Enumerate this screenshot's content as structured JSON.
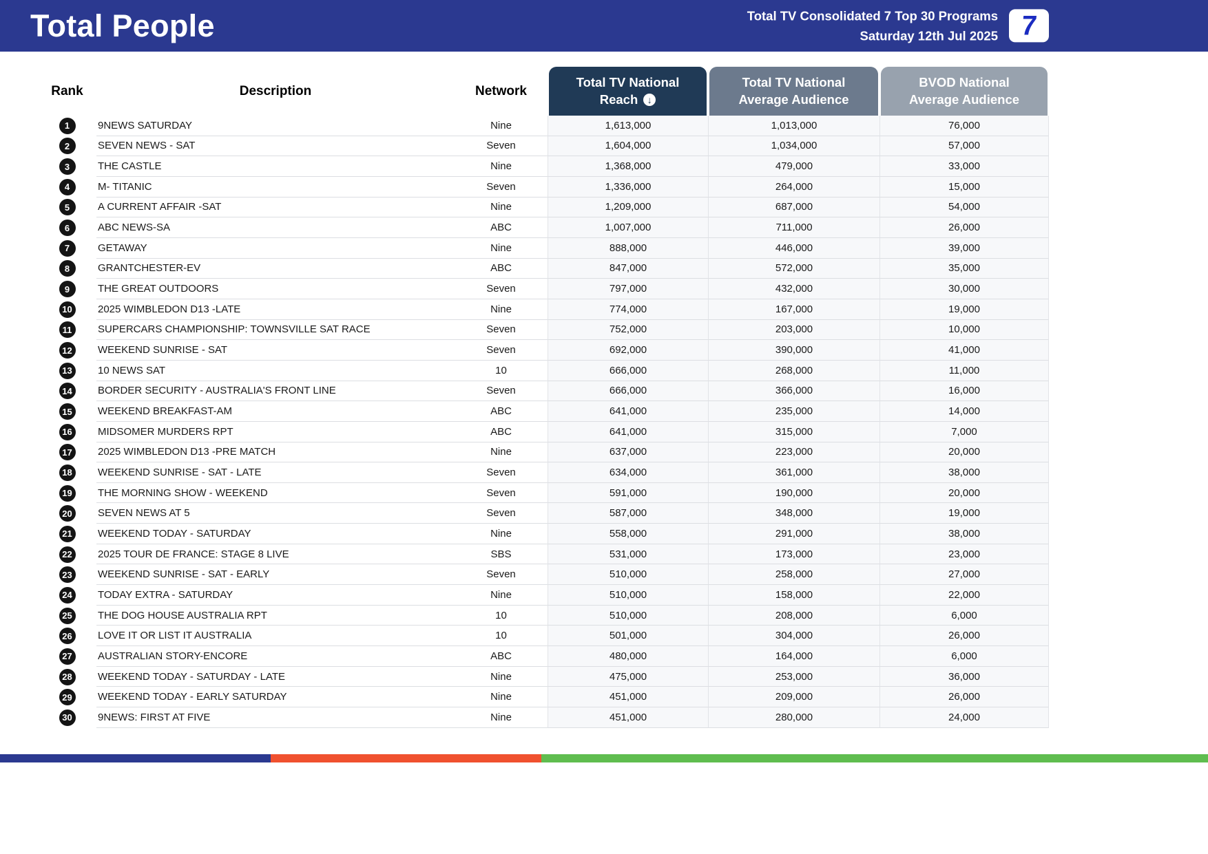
{
  "header": {
    "title": "Total People",
    "report_line1": "Total TV Consolidated 7 Top 30 Programs",
    "report_line2": "Saturday 12th Jul 2025",
    "logo_glyph": "7"
  },
  "table": {
    "columns": {
      "rank": "Rank",
      "description": "Description",
      "network": "Network",
      "reach_line1": "Total TV National",
      "reach_line2": "Reach",
      "avg_line1": "Total TV National",
      "avg_line2": "Average Audience",
      "bvod_line1": "BVOD National",
      "bvod_line2": "Average Audience"
    },
    "sort_icon": "↓",
    "rows": [
      {
        "rank": 1,
        "description": "9NEWS SATURDAY",
        "network": "Nine",
        "reach": "1,613,000",
        "avg": "1,013,000",
        "bvod": "76,000"
      },
      {
        "rank": 2,
        "description": "SEVEN NEWS - SAT",
        "network": "Seven",
        "reach": "1,604,000",
        "avg": "1,034,000",
        "bvod": "57,000"
      },
      {
        "rank": 3,
        "description": "THE CASTLE",
        "network": "Nine",
        "reach": "1,368,000",
        "avg": "479,000",
        "bvod": "33,000"
      },
      {
        "rank": 4,
        "description": "M- TITANIC",
        "network": "Seven",
        "reach": "1,336,000",
        "avg": "264,000",
        "bvod": "15,000"
      },
      {
        "rank": 5,
        "description": "A CURRENT AFFAIR -SAT",
        "network": "Nine",
        "reach": "1,209,000",
        "avg": "687,000",
        "bvod": "54,000"
      },
      {
        "rank": 6,
        "description": "ABC NEWS-SA",
        "network": "ABC",
        "reach": "1,007,000",
        "avg": "711,000",
        "bvod": "26,000"
      },
      {
        "rank": 7,
        "description": "GETAWAY",
        "network": "Nine",
        "reach": "888,000",
        "avg": "446,000",
        "bvod": "39,000"
      },
      {
        "rank": 8,
        "description": "GRANTCHESTER-EV",
        "network": "ABC",
        "reach": "847,000",
        "avg": "572,000",
        "bvod": "35,000"
      },
      {
        "rank": 9,
        "description": "THE GREAT OUTDOORS",
        "network": "Seven",
        "reach": "797,000",
        "avg": "432,000",
        "bvod": "30,000"
      },
      {
        "rank": 10,
        "description": "2025 WIMBLEDON D13 -LATE",
        "network": "Nine",
        "reach": "774,000",
        "avg": "167,000",
        "bvod": "19,000"
      },
      {
        "rank": 11,
        "description": "SUPERCARS CHAMPIONSHIP: TOWNSVILLE SAT RACE",
        "network": "Seven",
        "reach": "752,000",
        "avg": "203,000",
        "bvod": "10,000"
      },
      {
        "rank": 12,
        "description": "WEEKEND SUNRISE - SAT",
        "network": "Seven",
        "reach": "692,000",
        "avg": "390,000",
        "bvod": "41,000"
      },
      {
        "rank": 13,
        "description": "10 NEWS SAT",
        "network": "10",
        "reach": "666,000",
        "avg": "268,000",
        "bvod": "11,000"
      },
      {
        "rank": 14,
        "description": "BORDER SECURITY - AUSTRALIA'S FRONT LINE",
        "network": "Seven",
        "reach": "666,000",
        "avg": "366,000",
        "bvod": "16,000"
      },
      {
        "rank": 15,
        "description": "WEEKEND BREAKFAST-AM",
        "network": "ABC",
        "reach": "641,000",
        "avg": "235,000",
        "bvod": "14,000"
      },
      {
        "rank": 16,
        "description": "MIDSOMER MURDERS RPT",
        "network": "ABC",
        "reach": "641,000",
        "avg": "315,000",
        "bvod": "7,000"
      },
      {
        "rank": 17,
        "description": "2025 WIMBLEDON D13 -PRE MATCH",
        "network": "Nine",
        "reach": "637,000",
        "avg": "223,000",
        "bvod": "20,000"
      },
      {
        "rank": 18,
        "description": "WEEKEND SUNRISE - SAT - LATE",
        "network": "Seven",
        "reach": "634,000",
        "avg": "361,000",
        "bvod": "38,000"
      },
      {
        "rank": 19,
        "description": "THE MORNING SHOW - WEEKEND",
        "network": "Seven",
        "reach": "591,000",
        "avg": "190,000",
        "bvod": "20,000"
      },
      {
        "rank": 20,
        "description": "SEVEN NEWS AT 5",
        "network": "Seven",
        "reach": "587,000",
        "avg": "348,000",
        "bvod": "19,000"
      },
      {
        "rank": 21,
        "description": "WEEKEND TODAY - SATURDAY",
        "network": "Nine",
        "reach": "558,000",
        "avg": "291,000",
        "bvod": "38,000"
      },
      {
        "rank": 22,
        "description": "2025 TOUR DE FRANCE: STAGE 8 LIVE",
        "network": "SBS",
        "reach": "531,000",
        "avg": "173,000",
        "bvod": "23,000"
      },
      {
        "rank": 23,
        "description": "WEEKEND SUNRISE - SAT - EARLY",
        "network": "Seven",
        "reach": "510,000",
        "avg": "258,000",
        "bvod": "27,000"
      },
      {
        "rank": 24,
        "description": "TODAY EXTRA - SATURDAY",
        "network": "Nine",
        "reach": "510,000",
        "avg": "158,000",
        "bvod": "22,000"
      },
      {
        "rank": 25,
        "description": "THE DOG HOUSE AUSTRALIA RPT",
        "network": "10",
        "reach": "510,000",
        "avg": "208,000",
        "bvod": "6,000"
      },
      {
        "rank": 26,
        "description": "LOVE IT OR LIST IT AUSTRALIA",
        "network": "10",
        "reach": "501,000",
        "avg": "304,000",
        "bvod": "26,000"
      },
      {
        "rank": 27,
        "description": "AUSTRALIAN STORY-ENCORE",
        "network": "ABC",
        "reach": "480,000",
        "avg": "164,000",
        "bvod": "6,000"
      },
      {
        "rank": 28,
        "description": "WEEKEND TODAY - SATURDAY - LATE",
        "network": "Nine",
        "reach": "475,000",
        "avg": "253,000",
        "bvod": "36,000"
      },
      {
        "rank": 29,
        "description": "WEEKEND TODAY - EARLY SATURDAY",
        "network": "Nine",
        "reach": "451,000",
        "avg": "209,000",
        "bvod": "26,000"
      },
      {
        "rank": 30,
        "description": "9NEWS: FIRST AT FIVE",
        "network": "Nine",
        "reach": "451,000",
        "avg": "280,000",
        "bvod": "24,000"
      }
    ]
  },
  "footer": {
    "segments": [
      {
        "name": "blue",
        "color": "#2B3990",
        "width": "22.4%"
      },
      {
        "name": "orange",
        "color": "#F0512F",
        "width": "22.4%"
      },
      {
        "name": "green",
        "color": "#5FBD4F",
        "width": "55.2%"
      }
    ]
  },
  "colors": {
    "topbar-bg": "#2B3990",
    "reach-header-bg": "#203A56",
    "avg-header-bg": "#6C7A8D",
    "bvod-header-bg": "#98A2AE",
    "rank-badge-bg": "#141414",
    "logo-blue": "#1B2CC1",
    "row-line": "#DCDEE2",
    "num-col-bg": "#F7F8FA",
    "num-col-border": "#E2E4E8"
  }
}
